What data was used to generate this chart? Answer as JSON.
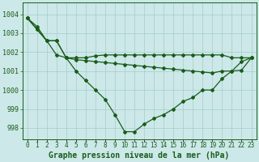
{
  "title": "Graphe pression niveau de la mer (hPa)",
  "bg_color": "#cce8e8",
  "line_color": "#1a5c1a",
  "grid_color": "#a8cccc",
  "series_main": [
    1003.8,
    1003.2,
    1002.6,
    1002.6,
    1001.7,
    1001.0,
    1000.5,
    1000.0,
    999.5,
    998.7,
    997.8,
    997.8,
    998.2,
    998.5,
    998.7,
    999.0,
    999.4,
    999.6,
    1000.0,
    1000.0,
    1000.6,
    1001.0,
    1001.5,
    1001.7
  ],
  "series_avg": [
    1003.8,
    1003.2,
    1002.6,
    1002.6,
    1001.7,
    1001.7,
    1001.7,
    1001.8,
    1001.85,
    1001.85,
    1001.85,
    1001.85,
    1001.85,
    1001.85,
    1001.85,
    1001.85,
    1001.85,
    1001.85,
    1001.85,
    1001.85,
    1001.85,
    1001.7,
    1001.7,
    1001.7
  ],
  "series_trend": [
    1003.8,
    1003.35,
    1002.6,
    1001.85,
    1001.7,
    1001.6,
    1001.55,
    1001.5,
    1001.45,
    1001.4,
    1001.35,
    1001.3,
    1001.25,
    1001.2,
    1001.15,
    1001.1,
    1001.05,
    1001.0,
    1000.95,
    1000.9,
    1001.0,
    1001.0,
    1001.05,
    1001.7
  ],
  "ylim_min": 997.4,
  "ylim_max": 1004.6,
  "yticks": [
    998,
    999,
    1000,
    1001,
    1002,
    1003,
    1004
  ],
  "tick_fontsize": 6.0,
  "xlabel_fontsize": 7.0,
  "figwidth": 3.2,
  "figheight": 2.0,
  "dpi": 100
}
